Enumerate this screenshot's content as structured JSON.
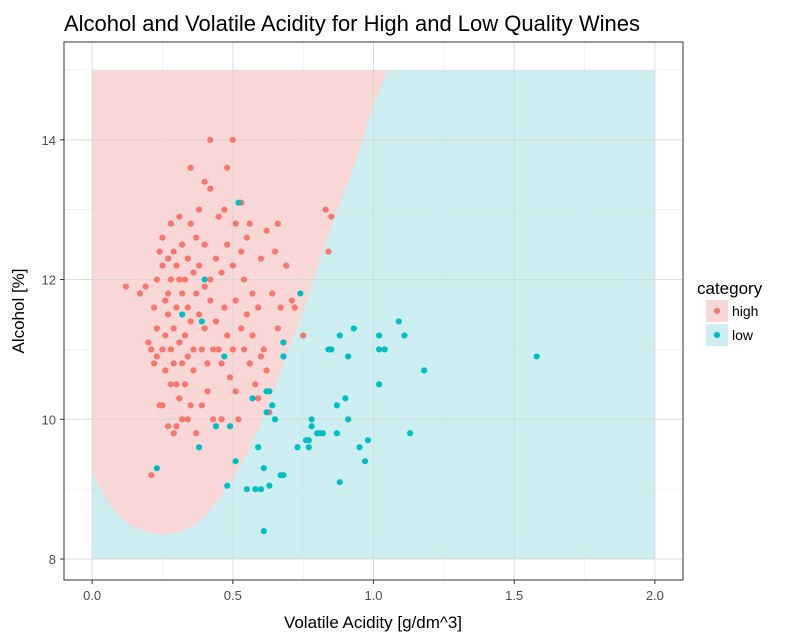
{
  "chart_data": {
    "type": "scatter",
    "title": "Alcohol and Volatile Acidity for High and Low Quality Wines",
    "xlabel": "Volatile Acidity [g/dm^3]",
    "ylabel": "Alcohol [%]",
    "xlim": [
      -0.1,
      2.1
    ],
    "ylim": [
      7.7,
      15.4
    ],
    "xticks": [
      0,
      0.5,
      1,
      1.5,
      2
    ],
    "xtick_labels": [
      "0.0",
      "0.5",
      "1.0",
      "1.5",
      "2.0"
    ],
    "yticks": [
      8,
      10,
      12,
      14
    ],
    "ytick_labels": [
      "8",
      "10",
      "12",
      "14"
    ],
    "grid": true,
    "legend": {
      "title": "category",
      "position": "right",
      "entries": [
        {
          "label": "high",
          "color": "#F8766D",
          "fill": "#F8D7D6"
        },
        {
          "label": "low",
          "color": "#00BFC4",
          "fill": "#CCEEF0"
        }
      ]
    },
    "decision_region": {
      "x_range": [
        0,
        2
      ],
      "y_range": [
        8,
        15
      ],
      "high_region_label": "high",
      "low_region_label": "low",
      "boundary": [
        [
          0.0,
          9.25
        ],
        [
          0.05,
          8.85
        ],
        [
          0.1,
          8.6
        ],
        [
          0.15,
          8.45
        ],
        [
          0.2,
          8.38
        ],
        [
          0.25,
          8.35
        ],
        [
          0.3,
          8.38
        ],
        [
          0.35,
          8.45
        ],
        [
          0.4,
          8.6
        ],
        [
          0.45,
          8.85
        ],
        [
          0.5,
          9.15
        ],
        [
          0.55,
          9.5
        ],
        [
          0.6,
          9.95
        ],
        [
          0.65,
          10.45
        ],
        [
          0.7,
          11.0
        ],
        [
          0.75,
          11.55
        ],
        [
          0.8,
          12.15
        ],
        [
          0.85,
          12.75
        ],
        [
          0.9,
          13.3
        ],
        [
          0.95,
          13.85
        ],
        [
          1.0,
          14.5
        ],
        [
          1.05,
          15.0
        ]
      ]
    },
    "series": [
      {
        "name": "high",
        "color": "#F8766D",
        "points": [
          [
            0.12,
            11.9
          ],
          [
            0.17,
            11.8
          ],
          [
            0.19,
            11.9
          ],
          [
            0.2,
            11.1
          ],
          [
            0.21,
            11.0
          ],
          [
            0.21,
            9.2
          ],
          [
            0.22,
            10.8
          ],
          [
            0.22,
            11.6
          ],
          [
            0.23,
            10.9
          ],
          [
            0.23,
            11.3
          ],
          [
            0.23,
            12.0
          ],
          [
            0.24,
            12.4
          ],
          [
            0.24,
            10.2
          ],
          [
            0.25,
            12.2
          ],
          [
            0.25,
            11.0
          ],
          [
            0.25,
            10.2
          ],
          [
            0.25,
            12.6
          ],
          [
            0.26,
            11.7
          ],
          [
            0.26,
            11.2
          ],
          [
            0.26,
            10.7
          ],
          [
            0.27,
            9.9
          ],
          [
            0.27,
            12.3
          ],
          [
            0.27,
            11.5
          ],
          [
            0.27,
            11.8
          ],
          [
            0.28,
            12.8
          ],
          [
            0.28,
            12.0
          ],
          [
            0.28,
            11.0
          ],
          [
            0.28,
            10.5
          ],
          [
            0.29,
            9.8
          ],
          [
            0.29,
            12.4
          ],
          [
            0.29,
            11.3
          ],
          [
            0.29,
            10.8
          ],
          [
            0.3,
            12.2
          ],
          [
            0.3,
            11.6
          ],
          [
            0.3,
            10.5
          ],
          [
            0.3,
            9.9
          ],
          [
            0.31,
            12.9
          ],
          [
            0.31,
            12.0
          ],
          [
            0.31,
            11.1
          ],
          [
            0.31,
            10.3
          ],
          [
            0.32,
            12.5
          ],
          [
            0.32,
            11.8
          ],
          [
            0.32,
            10.0
          ],
          [
            0.32,
            10.8
          ],
          [
            0.33,
            11.2
          ],
          [
            0.33,
            12.0
          ],
          [
            0.33,
            10.5
          ],
          [
            0.34,
            12.3
          ],
          [
            0.34,
            11.6
          ],
          [
            0.34,
            10.9
          ],
          [
            0.34,
            10.0
          ],
          [
            0.35,
            13.6
          ],
          [
            0.35,
            12.8
          ],
          [
            0.35,
            11.4
          ],
          [
            0.35,
            10.2
          ],
          [
            0.36,
            12.1
          ],
          [
            0.36,
            11.0
          ],
          [
            0.36,
            10.7
          ],
          [
            0.37,
            12.6
          ],
          [
            0.37,
            11.8
          ],
          [
            0.37,
            9.8
          ],
          [
            0.38,
            13.0
          ],
          [
            0.38,
            12.2
          ],
          [
            0.38,
            11.5
          ],
          [
            0.39,
            11.0
          ],
          [
            0.39,
            10.2
          ],
          [
            0.4,
            13.4
          ],
          [
            0.4,
            12.5
          ],
          [
            0.4,
            11.9
          ],
          [
            0.4,
            11.3
          ],
          [
            0.41,
            10.8
          ],
          [
            0.41,
            10.4
          ],
          [
            0.42,
            14.0
          ],
          [
            0.42,
            13.3
          ],
          [
            0.42,
            12.0
          ],
          [
            0.42,
            11.7
          ],
          [
            0.43,
            11.0
          ],
          [
            0.43,
            10.0
          ],
          [
            0.44,
            12.3
          ],
          [
            0.44,
            11.4
          ],
          [
            0.44,
            9.9
          ],
          [
            0.45,
            12.9
          ],
          [
            0.45,
            11.0
          ],
          [
            0.46,
            12.1
          ],
          [
            0.46,
            10.8
          ],
          [
            0.46,
            10.0
          ],
          [
            0.47,
            13.0
          ],
          [
            0.47,
            11.6
          ],
          [
            0.48,
            13.6
          ],
          [
            0.48,
            12.5
          ],
          [
            0.48,
            11.2
          ],
          [
            0.49,
            10.6
          ],
          [
            0.5,
            14.0
          ],
          [
            0.5,
            12.2
          ],
          [
            0.5,
            11.0
          ],
          [
            0.51,
            12.8
          ],
          [
            0.51,
            11.7
          ],
          [
            0.51,
            10.4
          ],
          [
            0.52,
            10.0
          ],
          [
            0.53,
            13.1
          ],
          [
            0.53,
            12.4
          ],
          [
            0.53,
            11.3
          ],
          [
            0.54,
            12.0
          ],
          [
            0.54,
            11.0
          ],
          [
            0.55,
            12.6
          ],
          [
            0.55,
            11.5
          ],
          [
            0.56,
            10.8
          ],
          [
            0.56,
            12.8
          ],
          [
            0.57,
            11.8
          ],
          [
            0.57,
            11.2
          ],
          [
            0.58,
            10.5
          ],
          [
            0.59,
            11.6
          ],
          [
            0.59,
            10.3
          ],
          [
            0.6,
            12.3
          ],
          [
            0.6,
            10.9
          ],
          [
            0.61,
            11.0
          ],
          [
            0.62,
            12.7
          ],
          [
            0.62,
            10.7
          ],
          [
            0.63,
            10.1
          ],
          [
            0.64,
            11.8
          ],
          [
            0.65,
            12.4
          ],
          [
            0.66,
            12.8
          ],
          [
            0.66,
            11.3
          ],
          [
            0.67,
            11.6
          ],
          [
            0.68,
            11.1
          ],
          [
            0.69,
            12.2
          ],
          [
            0.71,
            11.7
          ],
          [
            0.72,
            11.6
          ],
          [
            0.83,
            13.0
          ],
          [
            0.84,
            12.4
          ],
          [
            0.85,
            12.9
          ],
          [
            0.75,
            11.2
          ]
        ]
      },
      {
        "name": "low",
        "color": "#00BFC4",
        "points": [
          [
            0.23,
            9.3
          ],
          [
            0.32,
            11.5
          ],
          [
            0.38,
            9.6
          ],
          [
            0.39,
            11.4
          ],
          [
            0.4,
            12.0
          ],
          [
            0.44,
            9.9
          ],
          [
            0.47,
            10.9
          ],
          [
            0.48,
            9.05
          ],
          [
            0.49,
            9.9
          ],
          [
            0.51,
            9.4
          ],
          [
            0.52,
            13.1
          ],
          [
            0.55,
            9.0
          ],
          [
            0.57,
            10.3
          ],
          [
            0.58,
            9.0
          ],
          [
            0.59,
            9.6
          ],
          [
            0.6,
            9.0
          ],
          [
            0.61,
            9.3
          ],
          [
            0.61,
            8.4
          ],
          [
            0.62,
            10.1
          ],
          [
            0.62,
            10.4
          ],
          [
            0.63,
            9.05
          ],
          [
            0.63,
            10.4
          ],
          [
            0.64,
            10.2
          ],
          [
            0.65,
            10.0
          ],
          [
            0.67,
            9.2
          ],
          [
            0.68,
            9.2
          ],
          [
            0.68,
            10.9
          ],
          [
            0.68,
            11.1
          ],
          [
            0.73,
            9.6
          ],
          [
            0.74,
            11.8
          ],
          [
            0.76,
            9.7
          ],
          [
            0.77,
            9.6
          ],
          [
            0.77,
            9.7
          ],
          [
            0.78,
            9.9
          ],
          [
            0.78,
            10.0
          ],
          [
            0.8,
            9.8
          ],
          [
            0.81,
            9.8
          ],
          [
            0.82,
            9.8
          ],
          [
            0.84,
            11.0
          ],
          [
            0.85,
            11.0
          ],
          [
            0.87,
            9.8
          ],
          [
            0.87,
            10.2
          ],
          [
            0.88,
            9.1
          ],
          [
            0.88,
            11.2
          ],
          [
            0.9,
            10.3
          ],
          [
            0.91,
            10.9
          ],
          [
            0.91,
            10.0
          ],
          [
            0.93,
            11.3
          ],
          [
            0.95,
            9.6
          ],
          [
            0.97,
            9.4
          ],
          [
            0.98,
            9.7
          ],
          [
            1.02,
            11.2
          ],
          [
            1.02,
            10.5
          ],
          [
            1.02,
            11.0
          ],
          [
            1.04,
            11.0
          ],
          [
            1.09,
            11.4
          ],
          [
            1.11,
            11.2
          ],
          [
            1.13,
            9.8
          ],
          [
            1.18,
            10.7
          ],
          [
            1.58,
            10.9
          ]
        ]
      }
    ]
  }
}
